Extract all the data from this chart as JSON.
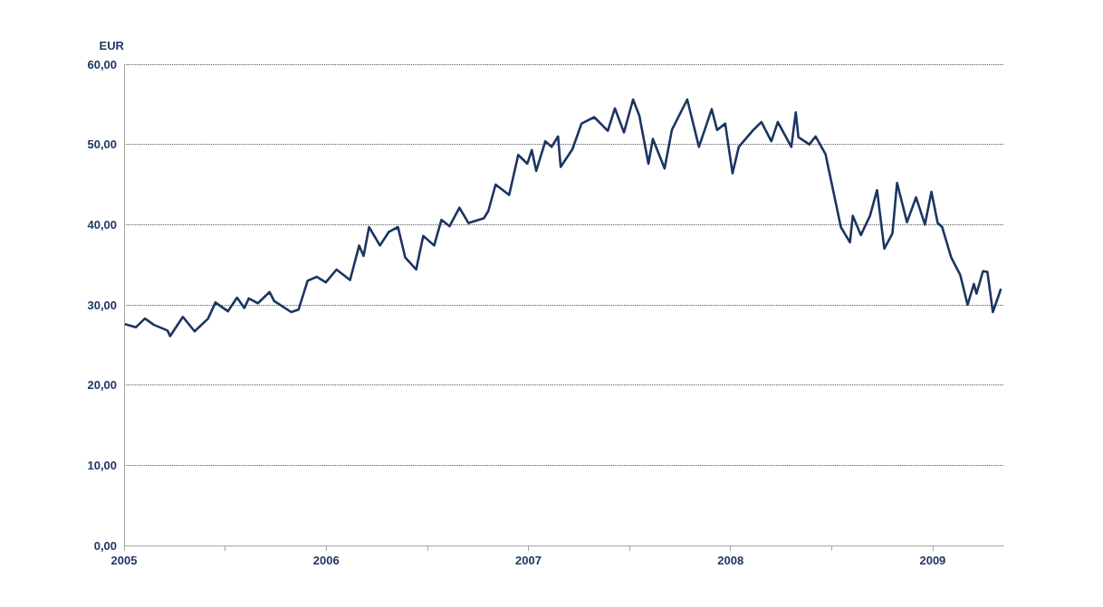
{
  "chart_data": {
    "type": "line",
    "ylabel": "EUR",
    "x": [
      2005.004,
      2005.058,
      2005.103,
      2005.148,
      2005.215,
      2005.228,
      2005.291,
      2005.349,
      2005.416,
      2005.452,
      2005.514,
      2005.559,
      2005.595,
      2005.617,
      2005.662,
      2005.72,
      2005.742,
      2005.827,
      2005.863,
      2005.908,
      2005.953,
      2005.998,
      2006.051,
      2006.118,
      2006.163,
      2006.185,
      2006.212,
      2006.266,
      2006.31,
      2006.355,
      2006.391,
      2006.445,
      2006.48,
      2006.534,
      2006.57,
      2006.61,
      2006.659,
      2006.704,
      2006.78,
      2006.802,
      2006.838,
      2006.905,
      2006.95,
      2006.995,
      2007.017,
      2007.039,
      2007.084,
      2007.115,
      2007.147,
      2007.16,
      2007.218,
      2007.263,
      2007.326,
      2007.393,
      2007.428,
      2007.473,
      2007.518,
      2007.549,
      2007.594,
      2007.616,
      2007.674,
      2007.71,
      2007.786,
      2007.844,
      2007.907,
      2007.934,
      2007.974,
      2008.01,
      2008.041,
      2008.113,
      2008.153,
      2008.202,
      2008.234,
      2008.301,
      2008.323,
      2008.336,
      2008.39,
      2008.421,
      2008.47,
      2008.511,
      2008.546,
      2008.591,
      2008.605,
      2008.645,
      2008.69,
      2008.725,
      2008.761,
      2008.801,
      2008.824,
      2008.873,
      2008.918,
      2008.962,
      2008.994,
      2009.025,
      2009.047,
      2009.092,
      2009.137,
      2009.173,
      2009.204,
      2009.217,
      2009.249,
      2009.271,
      2009.298,
      2009.338
    ],
    "series": [
      {
        "color": "#1c3561",
        "values": [
          27.6,
          27.2,
          28.3,
          27.5,
          26.8,
          26.1,
          28.5,
          26.7,
          28.3,
          30.3,
          29.2,
          30.9,
          29.6,
          30.8,
          30.2,
          31.6,
          30.5,
          29.1,
          29.4,
          33.0,
          33.5,
          32.8,
          34.4,
          33.1,
          37.4,
          36.1,
          39.7,
          37.4,
          39.1,
          39.7,
          35.9,
          34.4,
          38.6,
          37.4,
          40.6,
          39.8,
          42.1,
          40.2,
          40.8,
          41.7,
          45.0,
          43.7,
          48.7,
          47.6,
          49.3,
          46.7,
          50.4,
          49.7,
          51.0,
          47.2,
          49.4,
          52.6,
          53.4,
          51.7,
          54.5,
          51.5,
          55.6,
          53.6,
          47.6,
          50.7,
          47.0,
          51.8,
          55.6,
          49.7,
          54.4,
          51.8,
          52.6,
          46.4,
          49.7,
          51.8,
          52.8,
          50.4,
          52.8,
          49.7,
          54.0,
          50.9,
          50.0,
          51.0,
          48.8,
          43.9,
          39.7,
          37.8,
          41.1,
          38.7,
          41.1,
          44.3,
          37.0,
          38.9,
          45.2,
          40.3,
          43.4,
          40.0,
          44.1,
          40.2,
          39.7,
          35.9,
          33.7,
          30.0,
          32.6,
          31.4,
          34.2,
          34.1,
          29.1,
          32.0
        ]
      }
    ],
    "xlim": [
      2005,
      2009.35
    ],
    "xticks": [
      2005,
      {
        "value": 2005.5,
        "label": null
      },
      2006,
      {
        "value": 2006.5,
        "label": null
      },
      2007,
      {
        "value": 2007.5,
        "label": null
      },
      2008,
      {
        "value": 2008.5,
        "label": null
      },
      2009
    ],
    "ylim": [
      0,
      60
    ],
    "yticks": [
      {
        "value": 0,
        "label": "0,00"
      },
      {
        "value": 10,
        "label": "10,00"
      },
      {
        "value": 20,
        "label": "20,00"
      },
      {
        "value": 30,
        "label": "30,00"
      },
      {
        "value": 40,
        "label": "40,00"
      },
      {
        "value": 50,
        "label": "50,00"
      },
      {
        "value": 60,
        "label": "60,00"
      }
    ],
    "grid": "y",
    "marker": "none",
    "line_style": "solid"
  }
}
